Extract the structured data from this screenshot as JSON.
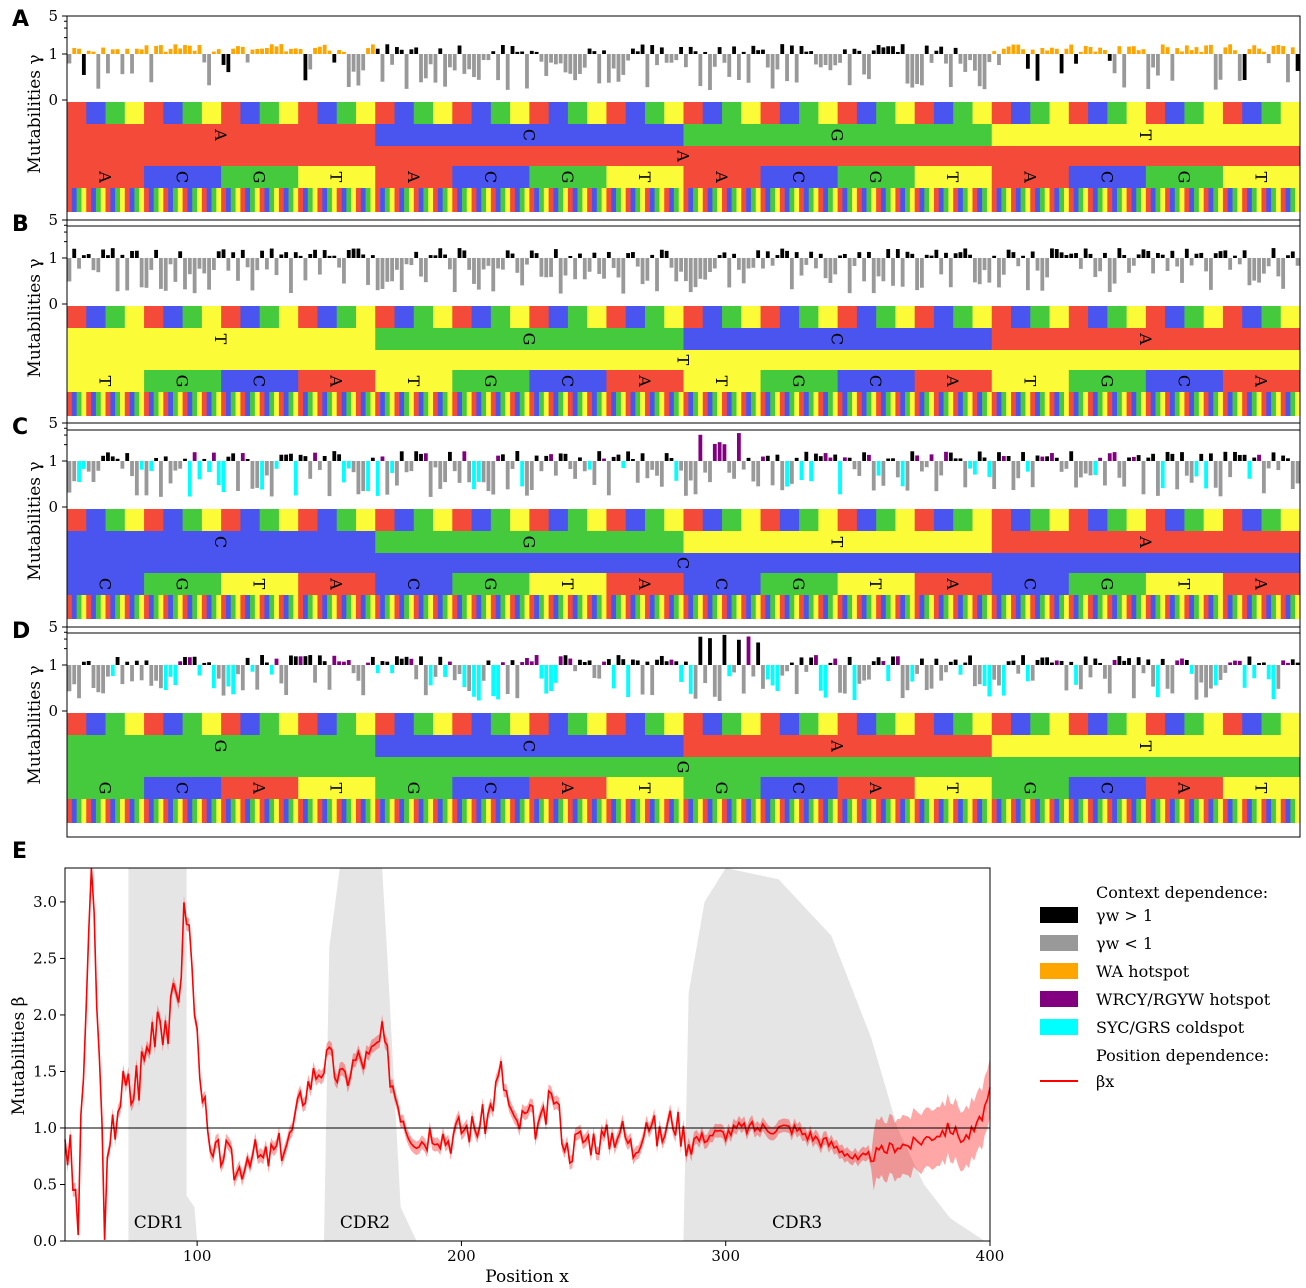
{
  "panel_labels": [
    "A",
    "B",
    "C",
    "D",
    "E"
  ],
  "context_panels": {
    "ylabel": "Mutabilities γ",
    "yticks": [
      "5",
      "1",
      "0"
    ],
    "nucleotides": [
      "A",
      "C",
      "G",
      "T"
    ],
    "colors": {
      "A": "#f44a3a",
      "C": "#4a55f0",
      "G": "#45c93d",
      "T": "#fbfb38"
    },
    "panels": [
      {
        "letter": "A",
        "center": "A",
        "row2": [
          "A",
          "C",
          "G",
          "T"
        ],
        "row3": [
          "A",
          "C",
          "G",
          "T"
        ],
        "color_mode": "WA"
      },
      {
        "letter": "B",
        "center": "T",
        "row2": [
          "T",
          "G",
          "C",
          "A"
        ],
        "row3": [
          "T",
          "G",
          "C",
          "A"
        ],
        "color_mode": "plain"
      },
      {
        "letter": "C",
        "center": "C",
        "row2": [
          "C",
          "G",
          "T",
          "A"
        ],
        "row3": [
          "C",
          "G",
          "T",
          "A"
        ],
        "color_mode": "WRCY"
      },
      {
        "letter": "D",
        "center": "G",
        "row2": [
          "G",
          "C",
          "A",
          "T"
        ],
        "row3": [
          "G",
          "C",
          "A",
          "T"
        ],
        "color_mode": "WRCY"
      }
    ]
  },
  "legend": {
    "header1": "Context dependence:",
    "items": [
      {
        "label": "γw > 1",
        "color": "#000000"
      },
      {
        "label": "γw < 1",
        "color": "#999999"
      },
      {
        "label": "WA hotspot",
        "color": "#ffa500"
      },
      {
        "label": "WRCY/RGYW hotspot",
        "color": "#800080"
      },
      {
        "label": "SYC/GRS coldspot",
        "color": "#00ffff"
      }
    ],
    "header2": "Position dependence:",
    "line_label": "βx",
    "line_color": "#ff0000"
  },
  "chart_data": {
    "type": "line",
    "title": "",
    "xlabel": "Position x",
    "ylabel": "Mutabilities β",
    "xlim": [
      50,
      400
    ],
    "ylim": [
      0,
      3.3
    ],
    "xticks": [
      100,
      200,
      300,
      400
    ],
    "yticks": [
      0.0,
      0.5,
      1.0,
      1.5,
      2.0,
      2.5,
      3.0
    ],
    "reference_line": 1.0,
    "cdr_regions": [
      {
        "label": "CDR1",
        "start": 74,
        "end": 97
      },
      {
        "label": "CDR2",
        "start": 150,
        "end": 177
      },
      {
        "label": "CDR3",
        "start": 285,
        "end": 395
      }
    ],
    "series": [
      {
        "name": "βx",
        "x": [
          50,
          55,
          60,
          65,
          70,
          75,
          80,
          85,
          90,
          93,
          96,
          100,
          105,
          110,
          115,
          120,
          125,
          130,
          135,
          140,
          145,
          150,
          155,
          160,
          165,
          170,
          175,
          180,
          185,
          190,
          195,
          200,
          205,
          210,
          215,
          220,
          225,
          230,
          235,
          240,
          245,
          250,
          255,
          260,
          265,
          270,
          275,
          280,
          285,
          290,
          295,
          300,
          305,
          310,
          315,
          320,
          325,
          330,
          335,
          340,
          345,
          350,
          355,
          360,
          365,
          370,
          375,
          380,
          385,
          390,
          395,
          400
        ],
        "y": [
          1.0,
          0.2,
          3.4,
          0.3,
          1.3,
          1.3,
          1.6,
          2.1,
          1.9,
          2.3,
          3.0,
          1.8,
          0.7,
          0.8,
          0.6,
          0.8,
          0.7,
          0.8,
          0.9,
          1.3,
          1.5,
          1.6,
          1.4,
          1.6,
          1.6,
          1.8,
          1.3,
          1.0,
          0.9,
          1.0,
          0.9,
          1.0,
          1.0,
          1.1,
          1.5,
          1.0,
          1.1,
          1.0,
          1.3,
          0.8,
          0.9,
          0.9,
          0.9,
          1.0,
          0.8,
          1.1,
          0.9,
          1.1,
          0.9,
          0.9,
          0.95,
          0.95,
          1.0,
          1.0,
          1.0,
          1.0,
          1.0,
          0.95,
          0.9,
          0.85,
          0.8,
          0.7,
          0.75,
          0.8,
          0.85,
          0.85,
          0.9,
          0.95,
          1.0,
          0.9,
          1.0,
          1.3
        ]
      }
    ]
  }
}
